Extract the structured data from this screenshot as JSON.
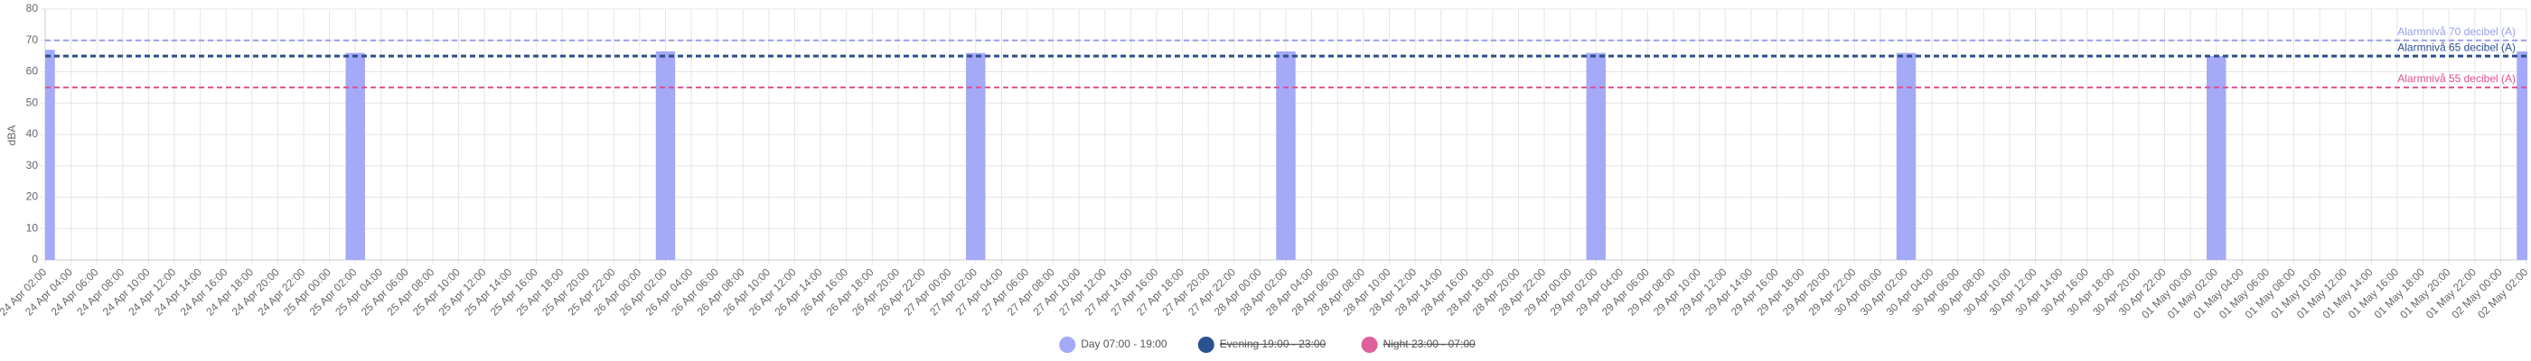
{
  "chart_data": {
    "type": "bar",
    "y_label": "dBA",
    "categories": [
      "24 Apr 02:00",
      "24 Apr 04:00",
      "24 Apr 06:00",
      "24 Apr 08:00",
      "24 Apr 10:00",
      "24 Apr 12:00",
      "24 Apr 14:00",
      "24 Apr 16:00",
      "24 Apr 18:00",
      "24 Apr 20:00",
      "24 Apr 22:00",
      "25 Apr 00:00",
      "25 Apr 02:00",
      "25 Apr 04:00",
      "25 Apr 06:00",
      "25 Apr 08:00",
      "25 Apr 10:00",
      "25 Apr 12:00",
      "25 Apr 14:00",
      "25 Apr 16:00",
      "25 Apr 18:00",
      "25 Apr 20:00",
      "25 Apr 22:00",
      "26 Apr 00:00",
      "26 Apr 02:00",
      "26 Apr 04:00",
      "26 Apr 06:00",
      "26 Apr 08:00",
      "26 Apr 10:00",
      "26 Apr 12:00",
      "26 Apr 14:00",
      "26 Apr 16:00",
      "26 Apr 18:00",
      "26 Apr 20:00",
      "26 Apr 22:00",
      "27 Apr 00:00",
      "27 Apr 02:00",
      "27 Apr 04:00",
      "27 Apr 06:00",
      "27 Apr 08:00",
      "27 Apr 10:00",
      "27 Apr 12:00",
      "27 Apr 14:00",
      "27 Apr 16:00",
      "27 Apr 18:00",
      "27 Apr 20:00",
      "27 Apr 22:00",
      "28 Apr 00:00",
      "28 Apr 02:00",
      "28 Apr 04:00",
      "28 Apr 06:00",
      "28 Apr 08:00",
      "28 Apr 10:00",
      "28 Apr 12:00",
      "28 Apr 14:00",
      "28 Apr 16:00",
      "28 Apr 18:00",
      "28 Apr 20:00",
      "28 Apr 22:00",
      "29 Apr 00:00",
      "29 Apr 02:00",
      "29 Apr 04:00",
      "29 Apr 06:00",
      "29 Apr 08:00",
      "29 Apr 10:00",
      "29 Apr 12:00",
      "29 Apr 14:00",
      "29 Apr 16:00",
      "29 Apr 18:00",
      "29 Apr 20:00",
      "29 Apr 22:00",
      "30 Apr 00:00",
      "30 Apr 02:00",
      "30 Apr 04:00",
      "30 Apr 06:00",
      "30 Apr 08:00",
      "30 Apr 10:00",
      "30 Apr 12:00",
      "30 Apr 14:00",
      "30 Apr 16:00",
      "30 Apr 18:00",
      "30 Apr 20:00",
      "30 Apr 22:00",
      "01 May 00:00",
      "01 May 02:00",
      "01 May 04:00",
      "01 May 06:00",
      "01 May 08:00",
      "01 May 10:00",
      "01 May 12:00",
      "01 May 14:00",
      "01 May 16:00",
      "01 May 18:00",
      "01 May 20:00",
      "01 May 22:00",
      "02 May 00:00",
      "02 May 02:00"
    ],
    "series": [
      {
        "name": "Day 07:00 - 19:00",
        "color": "#a4a9f8",
        "hidden": false,
        "values": [
          67,
          null,
          null,
          null,
          null,
          null,
          null,
          null,
          null,
          null,
          null,
          null,
          66,
          null,
          null,
          null,
          null,
          null,
          null,
          null,
          null,
          null,
          null,
          null,
          66.5,
          null,
          null,
          null,
          null,
          null,
          null,
          null,
          null,
          null,
          null,
          null,
          66,
          null,
          null,
          null,
          null,
          null,
          null,
          null,
          null,
          null,
          null,
          null,
          66.5,
          null,
          null,
          null,
          null,
          null,
          null,
          null,
          null,
          null,
          null,
          null,
          66,
          null,
          null,
          null,
          null,
          null,
          null,
          null,
          null,
          null,
          null,
          null,
          66,
          null,
          null,
          null,
          null,
          null,
          null,
          null,
          null,
          null,
          null,
          null,
          65,
          null,
          null,
          null,
          null,
          null,
          null,
          null,
          null,
          null,
          null,
          null,
          66.5
        ]
      },
      {
        "name": "Evening 19:00 - 23:00",
        "color": "#2c5190",
        "hidden": true,
        "values": [
          null,
          null,
          null,
          null,
          null,
          null,
          null,
          null,
          null,
          null,
          null,
          null,
          null,
          null,
          null,
          null,
          null,
          null,
          null,
          null,
          null,
          null,
          null,
          null,
          null,
          null,
          null,
          null,
          null,
          null,
          null,
          null,
          null,
          null,
          null,
          null,
          null,
          null,
          null,
          null,
          null,
          null,
          null,
          null,
          null,
          null,
          null,
          null,
          null,
          null,
          null,
          null,
          null,
          null,
          null,
          null,
          null,
          null,
          null,
          null,
          null,
          null,
          null,
          null,
          null,
          null,
          null,
          null,
          null,
          null,
          null,
          null,
          null,
          null,
          null,
          null,
          null,
          null,
          null,
          null,
          null,
          null,
          null,
          null,
          null,
          null,
          null,
          null,
          null,
          null,
          null,
          null,
          null,
          null,
          null,
          null,
          null
        ]
      },
      {
        "name": "Night 23:00 - 07:00",
        "color": "#e0609c",
        "hidden": true,
        "values": [
          null,
          null,
          null,
          null,
          null,
          null,
          null,
          null,
          null,
          null,
          null,
          null,
          null,
          null,
          null,
          null,
          null,
          null,
          null,
          null,
          null,
          null,
          null,
          null,
          null,
          null,
          null,
          null,
          null,
          null,
          null,
          null,
          null,
          null,
          null,
          null,
          null,
          null,
          null,
          null,
          null,
          null,
          null,
          null,
          null,
          null,
          null,
          null,
          null,
          null,
          null,
          null,
          null,
          null,
          null,
          null,
          null,
          null,
          null,
          null,
          null,
          null,
          null,
          null,
          null,
          null,
          null,
          null,
          null,
          null,
          null,
          null,
          null,
          null,
          null,
          null,
          null,
          null,
          null,
          null,
          null,
          null,
          null,
          null,
          null,
          null,
          null,
          null,
          null,
          null,
          null,
          null,
          null,
          null,
          null,
          null,
          null
        ]
      }
    ],
    "thresholds": [
      {
        "label": "Alarmnivå 70 decibel (A)",
        "value": 70,
        "color": "#9a9de8"
      },
      {
        "label": "Alarmnivå 65 decibel (A)",
        "value": 65,
        "color": "#2c4f8c"
      },
      {
        "label": "Alarmnivå 55 decibel (A)",
        "value": 55,
        "color": "#e0508c"
      }
    ],
    "ylim": [
      0,
      80
    ],
    "yticks": [
      0,
      10,
      20,
      30,
      40,
      50,
      60,
      70,
      80
    ],
    "grid": true,
    "legend": "bottom"
  }
}
